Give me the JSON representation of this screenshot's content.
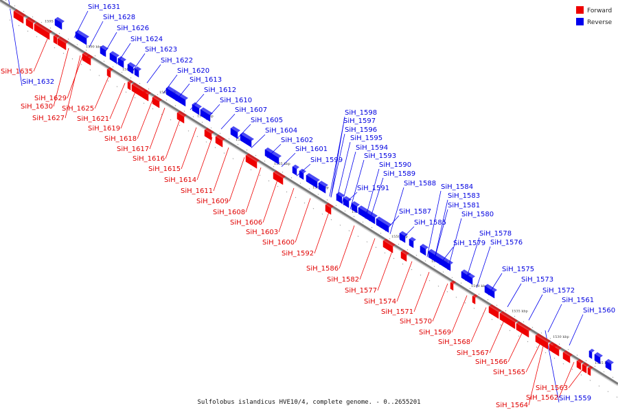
{
  "caption": "Sulfolobus islandicus HVE10/4, complete genome. - 0..2655201",
  "colors": {
    "forward": "#ee0000",
    "reverse": "#0000ee",
    "backbone": "#7a7a7a"
  },
  "legend": {
    "forward": "Forward",
    "reverse": "Reverse"
  },
  "ticks": [
    "1595 kbp",
    "1590 kbp",
    "1585 kbp",
    "1580 kbp",
    "1575 kbp",
    "1570 kbp",
    "1565 kbp",
    "1560 kbp",
    "1555 kbp",
    "1550 kbp",
    "1545 kbp",
    "1540 kbp",
    "1535 kbp",
    "1530 kbp",
    "1525 kbp"
  ],
  "forward_genes": [
    "SiH_1635",
    "SiH_1629",
    "SiH_1630",
    "SiH_1627",
    "SiH_1625",
    "SiH_1621",
    "SiH_1619",
    "SiH_1618",
    "SiH_1617",
    "SiH_1616",
    "SiH_1615",
    "SiH_1614",
    "SiH_1611",
    "SiH_1609",
    "SiH_1608",
    "SiH_1606",
    "SiH_1603",
    "SiH_1600",
    "SiH_1592",
    "SiH_1586",
    "SiH_1582",
    "SiH_1577",
    "SiH_1574",
    "SiH_1571",
    "SiH_1570",
    "SiH_1569",
    "SiH_1568",
    "SiH_1567",
    "SiH_1566",
    "SiH_1565",
    "SiH_1563",
    "SiH_1562",
    "SiH_1564"
  ],
  "reverse_genes": [
    "SiH_1631",
    "SiH_1628",
    "SiH_1626",
    "SiH_1624",
    "SiH_1623",
    "SiH_1622",
    "SiH_1620",
    "SiH_1632",
    "SiH_1613",
    "SiH_1612",
    "SiH_1610",
    "SiH_1607",
    "SiH_1605",
    "SiH_1604",
    "SiH_1602",
    "SiH_1601",
    "SiH_1599",
    "SiH_1598",
    "SiH_1597",
    "SiH_1596",
    "SiH_1595",
    "SiH_1594",
    "SiH_1593",
    "SiH_1590",
    "SiH_1589",
    "SiH_1588",
    "SiH_1591",
    "SiH_1587",
    "SiH_1585",
    "SiH_1584",
    "SiH_1583",
    "SiH_1581",
    "SiH_1580",
    "SiH_1579",
    "SiH_1578",
    "SiH_1576",
    "SiH_1575",
    "SiH_1573",
    "SiH_1572",
    "SiH_1561",
    "SiH_1560",
    "SiH_1559"
  ]
}
